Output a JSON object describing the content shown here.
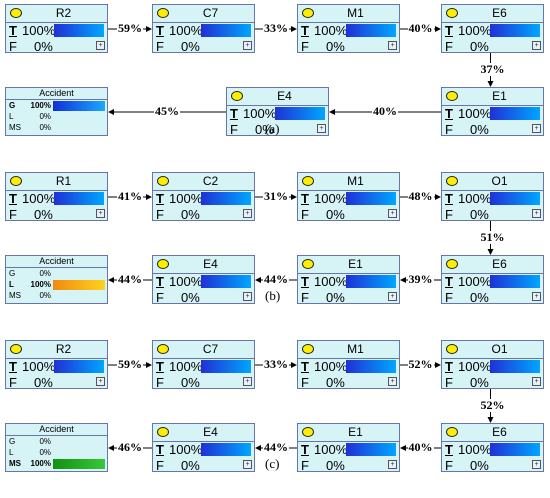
{
  "panels": [
    {
      "caption": "(a)",
      "nodes": [
        {
          "title": "R2",
          "t": "100%",
          "f": "0%"
        },
        {
          "title": "C7",
          "t": "100%",
          "f": "0%"
        },
        {
          "title": "M1",
          "t": "100%",
          "f": "0%"
        },
        {
          "title": "E6",
          "t": "100%",
          "f": "0%"
        },
        {
          "title": "E1",
          "t": "100%",
          "f": "0%"
        },
        {
          "title": "E4",
          "t": "100%",
          "f": "0%"
        }
      ],
      "accident": {
        "title": "Accident",
        "g": "100%",
        "l": "0%",
        "ms": "0%",
        "active": "G",
        "bar_color": "#1f44e0"
      },
      "edges": [
        "59%",
        "33%",
        "40%",
        "37%",
        "40%",
        "45%"
      ]
    },
    {
      "caption": "(b)",
      "nodes": [
        {
          "title": "R1",
          "t": "100%",
          "f": "0%"
        },
        {
          "title": "C2",
          "t": "100%",
          "f": "0%"
        },
        {
          "title": "M1",
          "t": "100%",
          "f": "0%"
        },
        {
          "title": "O1",
          "t": "100%",
          "f": "0%"
        },
        {
          "title": "E6",
          "t": "100%",
          "f": "0%"
        },
        {
          "title": "E1",
          "t": "100%",
          "f": "0%"
        },
        {
          "title": "E4",
          "t": "100%",
          "f": "0%"
        }
      ],
      "accident": {
        "title": "Accident",
        "g": "0%",
        "l": "100%",
        "ms": "0%",
        "active": "L",
        "bar_color": "#f0a020"
      },
      "edges": [
        "41%",
        "31%",
        "48%",
        "51%",
        "39%",
        "44%",
        "44%"
      ]
    },
    {
      "caption": "(c)",
      "nodes": [
        {
          "title": "R2",
          "t": "100%",
          "f": "0%"
        },
        {
          "title": "C7",
          "t": "100%",
          "f": "0%"
        },
        {
          "title": "M1",
          "t": "100%",
          "f": "0%"
        },
        {
          "title": "O1",
          "t": "100%",
          "f": "0%"
        },
        {
          "title": "E6",
          "t": "100%",
          "f": "0%"
        },
        {
          "title": "E1",
          "t": "100%",
          "f": "0%"
        },
        {
          "title": "E4",
          "t": "100%",
          "f": "0%"
        }
      ],
      "accident": {
        "title": "Accident",
        "g": "0%",
        "l": "0%",
        "ms": "100%",
        "active": "MS",
        "bar_color": "#1aa01a"
      },
      "edges": [
        "59%",
        "33%",
        "52%",
        "52%",
        "40%",
        "44%",
        "46%"
      ]
    }
  ],
  "legend": {
    "t_key": "T",
    "f_key": "F",
    "g_key": "G",
    "l_key": "L",
    "ms_key": "MS"
  }
}
